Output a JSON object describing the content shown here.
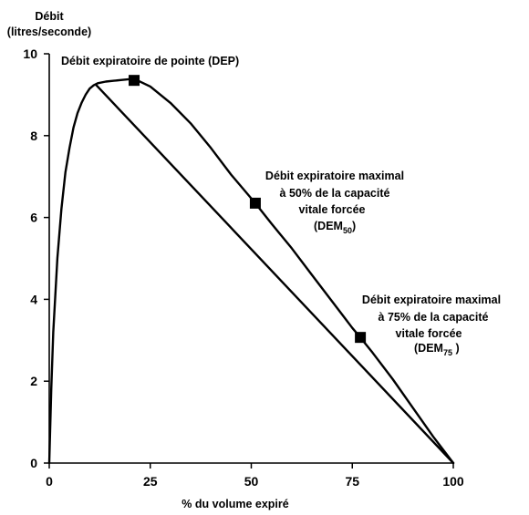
{
  "chart_data": {
    "type": "line",
    "ylabel_lines": [
      "Débit",
      "(litres/seconde)"
    ],
    "xlabel": "% du volume expiré",
    "xlim": [
      0,
      100
    ],
    "ylim": [
      0,
      10
    ],
    "x_ticks": [
      0,
      25,
      50,
      75,
      100
    ],
    "y_ticks": [
      0,
      2,
      4,
      6,
      8,
      10
    ],
    "grid": false,
    "legend": "none",
    "line_color": "#000000",
    "series": [
      {
        "points": [
          [
            0,
            0
          ],
          [
            0.5,
            1.8
          ],
          [
            1,
            3.2
          ],
          [
            2,
            5.0
          ],
          [
            3,
            6.2
          ],
          [
            4,
            7.1
          ],
          [
            5,
            7.7
          ],
          [
            6,
            8.2
          ],
          [
            7,
            8.55
          ],
          [
            8,
            8.8
          ],
          [
            9,
            9.0
          ],
          [
            10,
            9.15
          ],
          [
            11,
            9.23
          ],
          [
            12,
            9.28
          ],
          [
            14,
            9.32
          ],
          [
            16,
            9.34
          ],
          [
            18,
            9.36
          ],
          [
            20,
            9.38
          ],
          [
            22,
            9.34
          ],
          [
            25,
            9.2
          ],
          [
            30,
            8.8
          ],
          [
            35,
            8.3
          ],
          [
            40,
            7.7
          ],
          [
            45,
            7.05
          ],
          [
            51,
            6.35
          ],
          [
            55,
            5.85
          ],
          [
            60,
            5.25
          ],
          [
            65,
            4.6
          ],
          [
            70,
            3.95
          ],
          [
            75,
            3.3
          ],
          [
            77,
            3.07
          ],
          [
            80,
            2.7
          ],
          [
            85,
            2.05
          ],
          [
            90,
            1.35
          ],
          [
            95,
            0.65
          ],
          [
            100,
            0
          ]
        ]
      },
      {
        "points": [
          [
            11.5,
            9.25
          ],
          [
            100,
            0
          ]
        ]
      }
    ],
    "markers": [
      {
        "x": 21,
        "y": 9.35
      },
      {
        "x": 51,
        "y": 6.35
      },
      {
        "x": 77,
        "y": 3.07
      }
    ],
    "annotations": [
      {
        "lines": [
          "Débit expiratoire de pointe (DEP)"
        ]
      },
      {
        "lines": [
          "Débit expiratoire maximal",
          "à 50% de la capacité",
          "vitale forcée"
        ],
        "abbr": "(DEM",
        "sub": "50",
        "close": ")"
      },
      {
        "lines": [
          "Débit expiratoire maximal",
          "à 75% de la capacité",
          "vitale forcée"
        ],
        "abbr": "(DEM",
        "sub": "75",
        "close": " )"
      }
    ]
  }
}
